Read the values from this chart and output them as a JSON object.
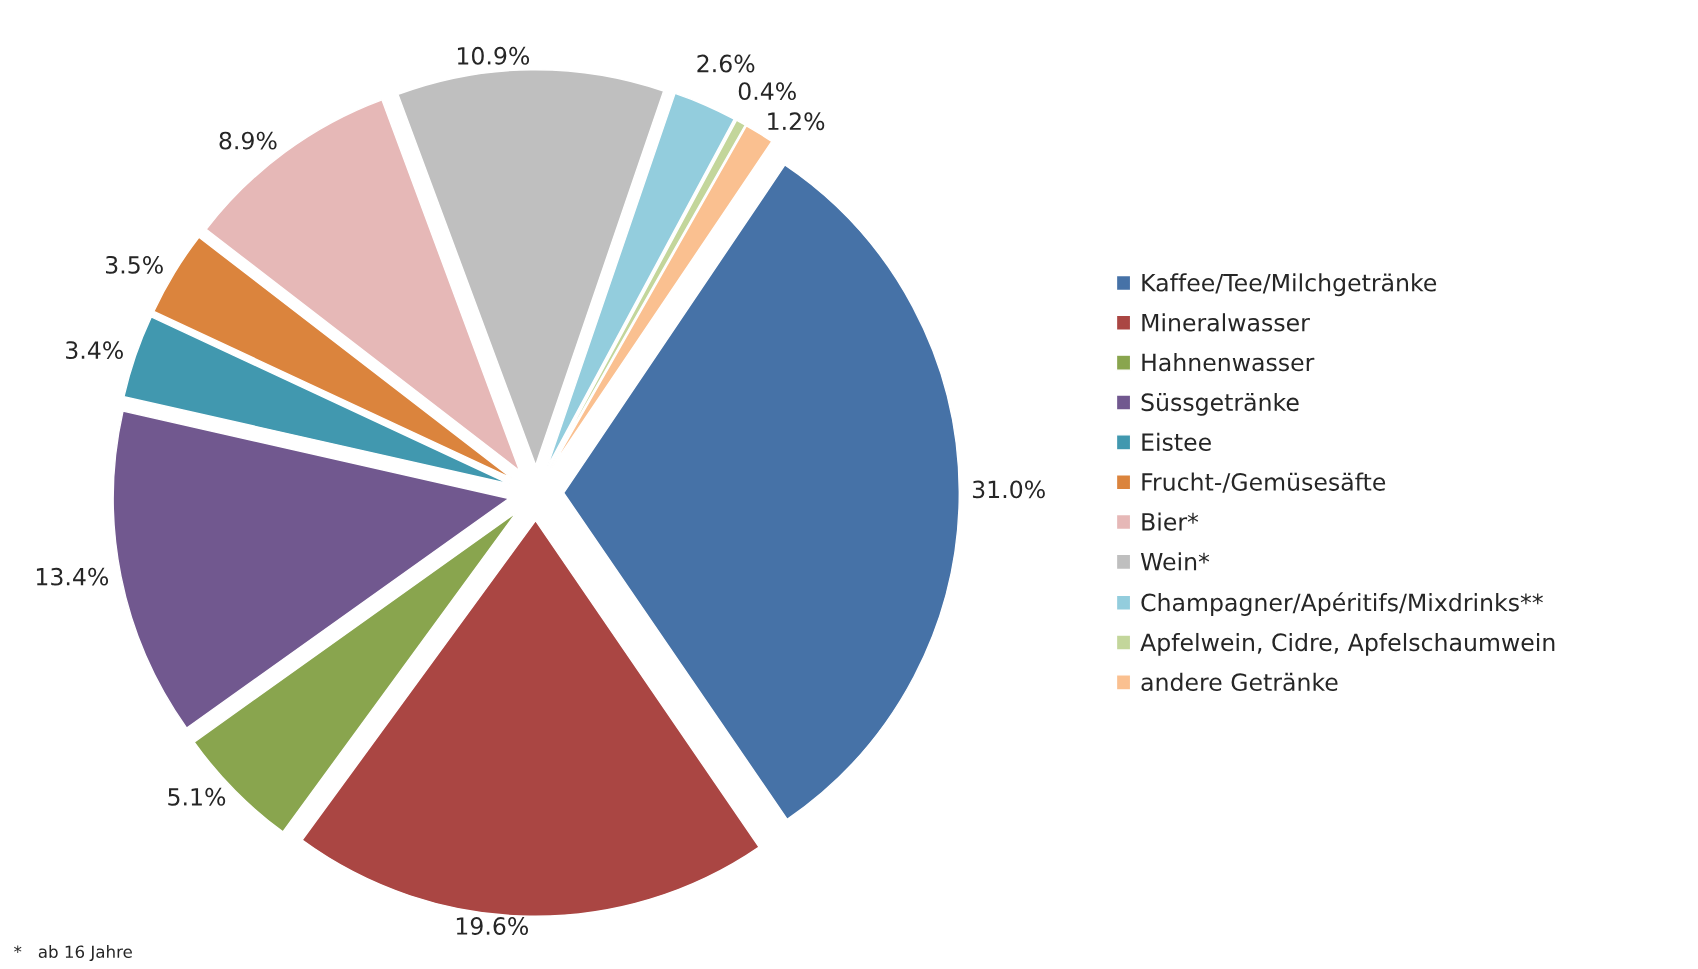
{
  "chart_data": {
    "type": "pie",
    "categories": [
      "Kaffee/Tee/Milchgetränke",
      "Mineralwasser",
      "Hahnenwasser",
      "Süssgetränke",
      "Eistee",
      "Frucht-/Gemüsesäfte",
      "Bier*",
      "Wein*",
      "Champagner/Apéritifs/Mixdrinks**",
      "Apfelwein, Cidre, Apfelschaumwein",
      "andere Getränke"
    ],
    "values": [
      31.0,
      19.6,
      5.1,
      13.4,
      3.4,
      3.5,
      8.9,
      10.9,
      2.6,
      0.4,
      1.2
    ],
    "colors": [
      "#4672a7",
      "#aa4643",
      "#89a54e",
      "#71588f",
      "#4198af",
      "#db843d",
      "#e6b8b7",
      "#bfbfbf",
      "#93cddd",
      "#c3d69b",
      "#fac090"
    ],
    "value_labels": [
      "31.0%",
      "19.6%",
      "5.1%",
      "13.4%",
      "3.4%",
      "3.5%",
      "8.9%",
      "10.9%",
      "2.6%",
      "0.4%",
      "1.2%"
    ],
    "legend": "right",
    "annotations": [
      "*   ab 16 Jahre"
    ]
  }
}
